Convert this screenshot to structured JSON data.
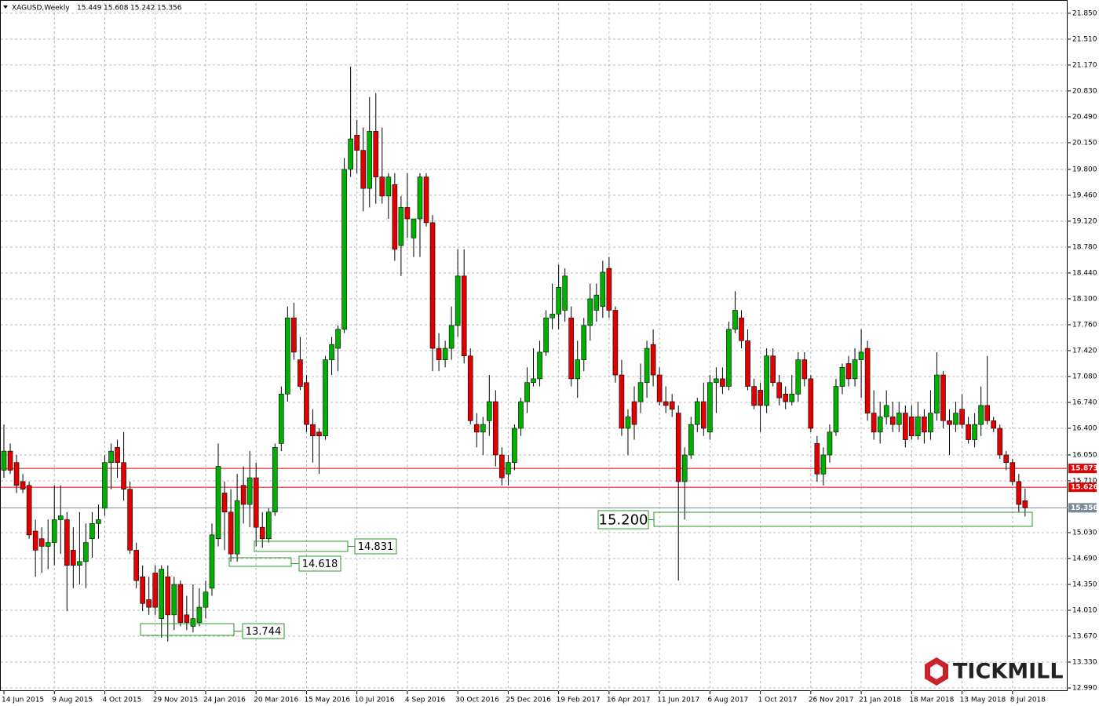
{
  "chart_data": {
    "type": "candlestick",
    "symbol": "XAGUSD,Weekly",
    "quote": [
      15.449,
      15.608,
      15.242,
      15.356
    ],
    "logo": "TICKMILL",
    "up_color": "#00b000",
    "down_color": "#e00000",
    "grid": true,
    "ylim": [
      12.949,
      21.983
    ],
    "yticks": [
      {
        "value": 12.99,
        "label": "12.990"
      },
      {
        "value": 13.33,
        "label": "13.330"
      },
      {
        "value": 13.67,
        "label": "13.670"
      },
      {
        "value": 14.01,
        "label": "14.010"
      },
      {
        "value": 14.35,
        "label": "14.350"
      },
      {
        "value": 14.69,
        "label": "14.690"
      },
      {
        "value": 15.03,
        "label": "15.030"
      },
      {
        "value": 15.71,
        "label": "15.710"
      },
      {
        "value": 16.05,
        "label": "16.050"
      },
      {
        "value": 16.4,
        "label": "16.400"
      },
      {
        "value": 16.74,
        "label": "16.740"
      },
      {
        "value": 17.08,
        "label": "17.080"
      },
      {
        "value": 17.42,
        "label": "17.420"
      },
      {
        "value": 17.76,
        "label": "17.760"
      },
      {
        "value": 18.1,
        "label": "18.100"
      },
      {
        "value": 18.44,
        "label": "18.440"
      },
      {
        "value": 18.78,
        "label": "18.780"
      },
      {
        "value": 19.12,
        "label": "19.120"
      },
      {
        "value": 19.46,
        "label": "19.460"
      },
      {
        "value": 19.8,
        "label": "19.800"
      },
      {
        "value": 20.15,
        "label": "20.150"
      },
      {
        "value": 20.49,
        "label": "20.490"
      },
      {
        "value": 20.83,
        "label": "20.830"
      },
      {
        "value": 21.17,
        "label": "21.170"
      },
      {
        "value": 21.51,
        "label": "21.510"
      },
      {
        "value": 21.85,
        "label": "21.850"
      }
    ],
    "lines": [
      {
        "value": 15.873,
        "color": "#e00000"
      },
      {
        "value": 15.626,
        "color": "#e00000"
      },
      {
        "value": 15.356,
        "color": "#7a8a99"
      }
    ],
    "levels": [
      14.831,
      14.618,
      13.744,
      {
        "value": 15.2,
        "label": "15.200"
      }
    ],
    "categories": [
      "14 Jun 2015",
      null,
      null,
      null,
      null,
      null,
      null,
      null,
      "9 Aug 2015",
      null,
      null,
      null,
      null,
      null,
      null,
      null,
      "4 Oct 2015",
      null,
      null,
      null,
      null,
      null,
      null,
      null,
      "29 Nov 2015",
      null,
      null,
      null,
      null,
      null,
      null,
      null,
      "24 Jan 2016",
      null,
      null,
      null,
      null,
      null,
      null,
      null,
      "20 Mar 2016",
      null,
      null,
      null,
      null,
      null,
      null,
      null,
      "15 May 2016",
      null,
      null,
      null,
      null,
      null,
      null,
      null,
      "10 Jul 2016",
      null,
      null,
      null,
      null,
      null,
      null,
      null,
      "4 Sep 2016",
      null,
      null,
      null,
      null,
      null,
      null,
      null,
      "30 Oct 2016",
      null,
      null,
      null,
      null,
      null,
      null,
      null,
      "25 Dec 2016",
      null,
      null,
      null,
      null,
      null,
      null,
      null,
      "19 Feb 2017",
      null,
      null,
      null,
      null,
      null,
      null,
      null,
      "16 Apr 2017",
      null,
      null,
      null,
      null,
      null,
      null,
      null,
      "11 Jun 2017",
      null,
      null,
      null,
      null,
      null,
      null,
      null,
      "6 Aug 2017",
      null,
      null,
      null,
      null,
      null,
      null,
      null,
      "1 Oct 2017",
      null,
      null,
      null,
      null,
      null,
      null,
      null,
      "26 Nov 2017",
      null,
      null,
      null,
      null,
      null,
      null,
      null,
      "21 Jan 2018",
      null,
      null,
      null,
      null,
      null,
      null,
      null,
      "18 Mar 2018",
      null,
      null,
      null,
      null,
      null,
      null,
      null,
      "13 May 2018",
      null,
      null,
      null,
      null,
      null,
      null,
      null,
      "8 Jul 2018",
      null,
      null
    ],
    "ohlc": [
      [
        15.85,
        16.45,
        15.75,
        16.1
      ],
      [
        16.1,
        16.2,
        15.8,
        15.85
      ],
      [
        15.95,
        16.05,
        15.55,
        15.65
      ],
      [
        15.7,
        15.8,
        15.55,
        15.6
      ],
      [
        15.65,
        15.7,
        14.95,
        15.0
      ],
      [
        15.05,
        15.2,
        14.45,
        14.8
      ],
      [
        14.95,
        15.1,
        14.5,
        14.85
      ],
      [
        14.85,
        15.2,
        14.55,
        14.9
      ],
      [
        14.9,
        15.65,
        14.6,
        15.2
      ],
      [
        15.2,
        15.65,
        14.75,
        15.25
      ],
      [
        15.2,
        15.3,
        14.0,
        14.6
      ],
      [
        14.8,
        15.1,
        14.3,
        14.6
      ],
      [
        14.6,
        15.3,
        14.35,
        14.65
      ],
      [
        14.65,
        15.15,
        14.3,
        14.9
      ],
      [
        14.95,
        15.3,
        14.7,
        15.15
      ],
      [
        15.15,
        15.4,
        14.95,
        15.2
      ],
      [
        15.35,
        16.05,
        15.25,
        15.95
      ],
      [
        15.95,
        16.2,
        15.6,
        16.1
      ],
      [
        16.15,
        16.25,
        15.75,
        15.95
      ],
      [
        15.95,
        16.35,
        15.45,
        15.6
      ],
      [
        15.6,
        15.7,
        14.75,
        14.8
      ],
      [
        14.8,
        14.9,
        14.3,
        14.4
      ],
      [
        14.45,
        14.6,
        14.0,
        14.1
      ],
      [
        14.15,
        14.45,
        13.95,
        14.05
      ],
      [
        14.5,
        14.6,
        13.95,
        14.05
      ],
      [
        13.9,
        14.6,
        13.65,
        14.55
      ],
      [
        14.45,
        14.6,
        13.6,
        13.95
      ],
      [
        13.95,
        14.45,
        13.75,
        14.35
      ],
      [
        14.35,
        14.4,
        13.8,
        13.85
      ],
      [
        13.95,
        14.2,
        13.75,
        13.85
      ],
      [
        13.8,
        14.35,
        13.72,
        13.9
      ],
      [
        13.85,
        14.3,
        13.8,
        14.05
      ],
      [
        14.05,
        14.4,
        13.9,
        14.25
      ],
      [
        14.3,
        15.15,
        14.2,
        15.0
      ],
      [
        14.95,
        16.2,
        14.85,
        15.9
      ],
      [
        15.55,
        15.7,
        14.8,
        15.3
      ],
      [
        15.3,
        15.6,
        14.65,
        14.75
      ],
      [
        14.75,
        15.8,
        14.65,
        15.45
      ],
      [
        15.65,
        15.9,
        15.15,
        15.4
      ],
      [
        15.4,
        16.1,
        15.1,
        15.75
      ],
      [
        15.75,
        15.95,
        14.85,
        15.1
      ],
      [
        15.1,
        15.3,
        14.83,
        14.95
      ],
      [
        14.95,
        15.35,
        14.9,
        15.3
      ],
      [
        15.3,
        16.2,
        15.25,
        16.15
      ],
      [
        16.2,
        16.95,
        16.1,
        16.85
      ],
      [
        16.85,
        18.0,
        16.75,
        17.85
      ],
      [
        17.85,
        18.05,
        17.3,
        17.4
      ],
      [
        17.3,
        17.6,
        16.9,
        16.95
      ],
      [
        17.0,
        17.1,
        16.35,
        16.45
      ],
      [
        16.45,
        16.65,
        15.95,
        16.3
      ],
      [
        16.35,
        16.4,
        15.8,
        16.3
      ],
      [
        16.3,
        17.35,
        16.25,
        17.3
      ],
      [
        17.3,
        17.6,
        17.1,
        17.5
      ],
      [
        17.45,
        17.75,
        17.15,
        17.7
      ],
      [
        17.7,
        19.95,
        17.65,
        19.8
      ],
      [
        19.8,
        21.15,
        19.7,
        20.2
      ],
      [
        20.25,
        20.45,
        19.75,
        20.05
      ],
      [
        20.05,
        20.35,
        19.25,
        19.55
      ],
      [
        19.55,
        20.75,
        19.3,
        20.3
      ],
      [
        20.3,
        20.8,
        19.35,
        19.7
      ],
      [
        19.7,
        20.35,
        19.35,
        19.45
      ],
      [
        19.45,
        19.75,
        19.15,
        19.7
      ],
      [
        19.6,
        19.75,
        18.6,
        18.75
      ],
      [
        18.8,
        19.45,
        18.4,
        19.3
      ],
      [
        19.3,
        19.75,
        18.9,
        19.15
      ],
      [
        18.9,
        19.15,
        18.65,
        19.15
      ],
      [
        19.15,
        19.75,
        18.65,
        19.7
      ],
      [
        19.7,
        19.75,
        19.05,
        19.1
      ],
      [
        19.1,
        19.2,
        17.15,
        17.45
      ],
      [
        17.45,
        17.65,
        17.15,
        17.3
      ],
      [
        17.3,
        17.55,
        17.2,
        17.45
      ],
      [
        17.45,
        18.0,
        17.3,
        17.75
      ],
      [
        17.75,
        18.75,
        17.6,
        18.4
      ],
      [
        18.4,
        18.75,
        17.25,
        17.35
      ],
      [
        17.35,
        17.45,
        16.45,
        16.5
      ],
      [
        16.45,
        16.6,
        16.15,
        16.35
      ],
      [
        16.35,
        16.55,
        16.05,
        16.45
      ],
      [
        16.5,
        17.1,
        16.3,
        16.75
      ],
      [
        16.75,
        16.9,
        15.9,
        16.05
      ],
      [
        16.05,
        16.15,
        15.65,
        15.75
      ],
      [
        15.8,
        16.05,
        15.65,
        15.95
      ],
      [
        15.95,
        16.45,
        15.85,
        16.4
      ],
      [
        16.4,
        16.8,
        16.3,
        16.75
      ],
      [
        16.75,
        17.2,
        16.6,
        17.0
      ],
      [
        17.0,
        17.45,
        16.95,
        17.05
      ],
      [
        17.05,
        17.55,
        16.95,
        17.4
      ],
      [
        17.4,
        17.95,
        17.35,
        17.85
      ],
      [
        17.85,
        18.3,
        17.7,
        17.9
      ],
      [
        17.9,
        18.55,
        17.7,
        18.25
      ],
      [
        17.95,
        18.5,
        17.8,
        18.4
      ],
      [
        17.85,
        18.0,
        16.95,
        17.05
      ],
      [
        17.05,
        17.55,
        16.8,
        17.3
      ],
      [
        17.3,
        17.85,
        17.15,
        17.75
      ],
      [
        17.75,
        18.3,
        17.55,
        18.1
      ],
      [
        17.95,
        18.3,
        17.8,
        18.15
      ],
      [
        18.0,
        18.6,
        17.85,
        18.45
      ],
      [
        18.5,
        18.65,
        17.85,
        17.95
      ],
      [
        17.95,
        18.0,
        17.0,
        17.1
      ],
      [
        17.1,
        17.3,
        16.3,
        16.4
      ],
      [
        16.4,
        16.65,
        16.05,
        16.55
      ],
      [
        16.75,
        16.95,
        16.25,
        16.45
      ],
      [
        16.75,
        17.25,
        16.6,
        17.0
      ],
      [
        17.0,
        17.55,
        16.8,
        17.45
      ],
      [
        17.5,
        17.7,
        16.95,
        17.1
      ],
      [
        17.1,
        17.2,
        16.7,
        16.75
      ],
      [
        16.75,
        16.95,
        16.6,
        16.7
      ],
      [
        16.75,
        16.85,
        16.55,
        16.65
      ],
      [
        16.6,
        16.7,
        14.4,
        15.7
      ],
      [
        15.7,
        16.15,
        15.2,
        16.05
      ],
      [
        16.05,
        16.55,
        16.0,
        16.45
      ],
      [
        16.45,
        16.8,
        16.35,
        16.75
      ],
      [
        16.75,
        17.0,
        16.3,
        16.4
      ],
      [
        16.35,
        17.1,
        16.25,
        17.0
      ],
      [
        17.0,
        17.2,
        16.6,
        17.05
      ],
      [
        17.05,
        17.2,
        16.85,
        16.95
      ],
      [
        16.95,
        17.8,
        16.9,
        17.7
      ],
      [
        17.7,
        18.2,
        17.65,
        17.95
      ],
      [
        17.85,
        17.95,
        17.45,
        17.55
      ],
      [
        17.55,
        17.7,
        16.9,
        16.95
      ],
      [
        16.95,
        17.05,
        16.65,
        16.7
      ],
      [
        16.9,
        17.0,
        16.35,
        16.7
      ],
      [
        16.7,
        17.45,
        16.6,
        17.35
      ],
      [
        17.35,
        17.45,
        16.95,
        17.0
      ],
      [
        17.0,
        17.1,
        16.7,
        16.8
      ],
      [
        16.85,
        16.95,
        16.65,
        16.75
      ],
      [
        16.75,
        17.1,
        16.7,
        16.85
      ],
      [
        16.85,
        17.4,
        16.75,
        17.3
      ],
      [
        17.3,
        17.4,
        16.95,
        17.05
      ],
      [
        17.05,
        17.1,
        16.35,
        16.4
      ],
      [
        16.2,
        16.3,
        15.7,
        15.8
      ],
      [
        15.8,
        16.15,
        15.65,
        16.05
      ],
      [
        16.05,
        16.45,
        15.95,
        16.35
      ],
      [
        16.35,
        17.05,
        16.3,
        16.95
      ],
      [
        16.95,
        17.25,
        16.85,
        17.2
      ],
      [
        17.25,
        17.35,
        16.95,
        17.05
      ],
      [
        17.05,
        17.45,
        16.95,
        17.3
      ],
      [
        17.3,
        17.7,
        16.8,
        17.4
      ],
      [
        17.45,
        17.55,
        16.5,
        16.6
      ],
      [
        16.6,
        16.9,
        16.25,
        16.35
      ],
      [
        16.35,
        16.75,
        16.2,
        16.55
      ],
      [
        16.55,
        16.9,
        16.45,
        16.7
      ],
      [
        16.55,
        16.75,
        16.35,
        16.45
      ],
      [
        16.45,
        16.75,
        16.35,
        16.6
      ],
      [
        16.6,
        16.7,
        16.15,
        16.25
      ],
      [
        16.55,
        16.7,
        16.25,
        16.3
      ],
      [
        16.3,
        16.75,
        16.25,
        16.55
      ],
      [
        16.55,
        16.65,
        16.2,
        16.35
      ],
      [
        16.35,
        16.9,
        16.25,
        16.6
      ],
      [
        16.6,
        17.4,
        16.5,
        17.1
      ],
      [
        17.1,
        17.15,
        16.4,
        16.5
      ],
      [
        16.5,
        16.65,
        16.05,
        16.45
      ],
      [
        16.45,
        16.75,
        16.35,
        16.6
      ],
      [
        16.65,
        16.85,
        16.4,
        16.45
      ],
      [
        16.45,
        16.55,
        16.2,
        16.25
      ],
      [
        16.25,
        16.6,
        16.15,
        16.45
      ],
      [
        16.45,
        16.95,
        16.3,
        16.7
      ],
      [
        16.7,
        17.35,
        16.45,
        16.5
      ],
      [
        16.5,
        16.55,
        16.35,
        16.4
      ],
      [
        16.4,
        16.45,
        16.0,
        16.05
      ],
      [
        16.05,
        16.1,
        15.85,
        15.95
      ],
      [
        15.95,
        16.0,
        15.65,
        15.7
      ],
      [
        15.7,
        15.8,
        15.3,
        15.4
      ],
      [
        15.449,
        15.608,
        15.242,
        15.356
      ]
    ]
  }
}
